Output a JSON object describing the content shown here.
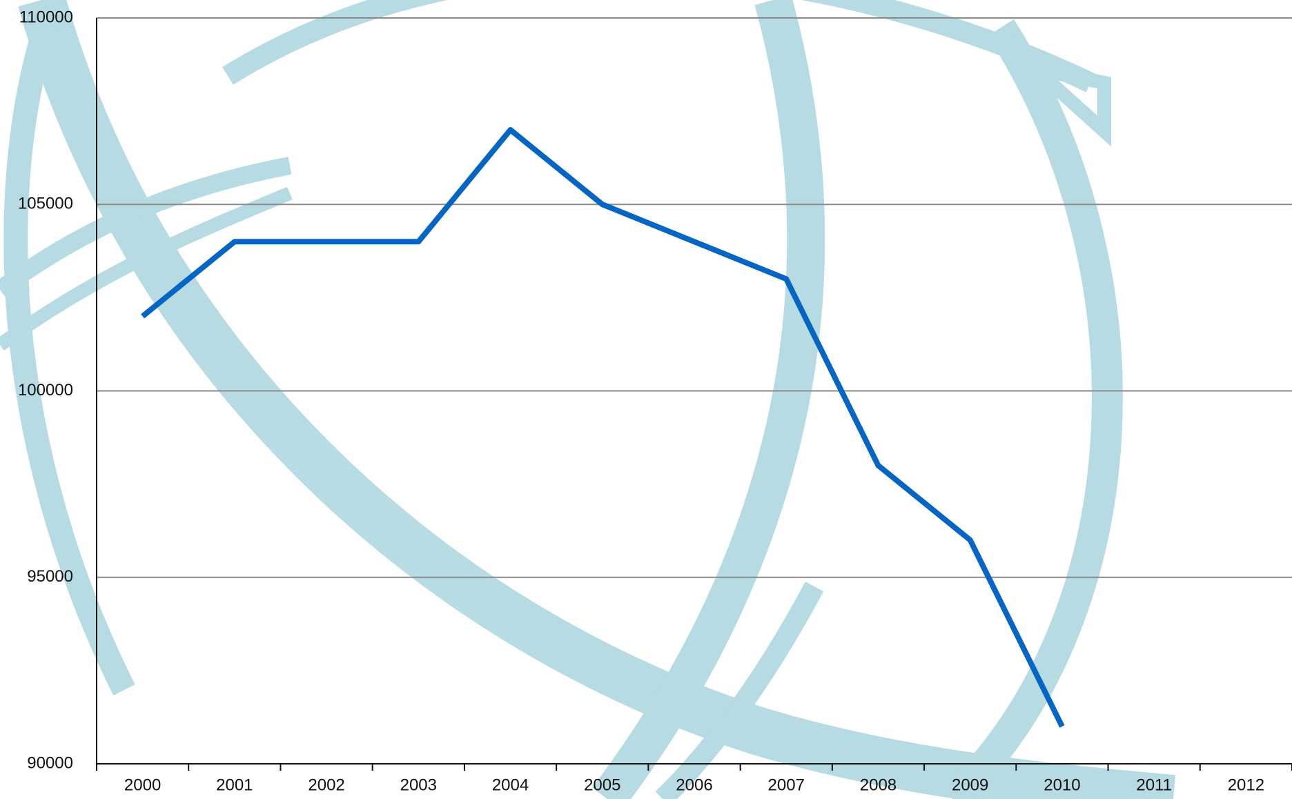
{
  "chart_data": {
    "type": "line",
    "categories": [
      "2000",
      "2001",
      "2002",
      "2003",
      "2004",
      "2005",
      "2006",
      "2007",
      "2008",
      "2009",
      "2010",
      "2011",
      "2012"
    ],
    "series": [
      {
        "name": null,
        "color": "#0565c4",
        "values": [
          102000,
          104000,
          104000,
          104000,
          107000,
          105000,
          104000,
          103000,
          98000,
          96000,
          91000,
          null,
          null
        ]
      }
    ],
    "ylim": [
      90000,
      110000
    ],
    "yticks": [
      90000,
      95000,
      100000,
      105000,
      110000
    ],
    "grid": true
  }
}
